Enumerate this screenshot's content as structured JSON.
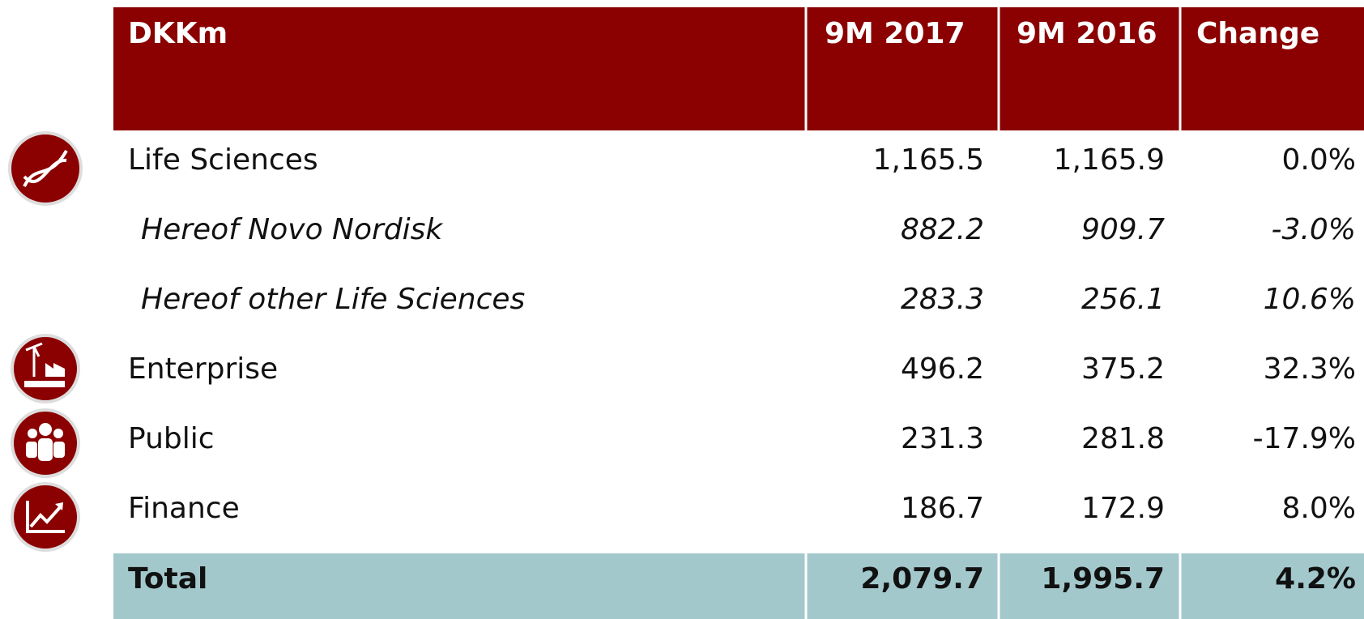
{
  "table": {
    "header": [
      "DKKm",
      "9M 2017",
      "9M 2016",
      "Change"
    ],
    "rows": [
      [
        "Life Sciences",
        "1,165.5",
        "1,165.9",
        "0.0%"
      ],
      [
        "Hereof Novo Nordisk",
        "882.2",
        "909.7",
        "-3.0%"
      ],
      [
        "Hereof other Life Sciences",
        "283.3",
        "256.1",
        "10.6%"
      ],
      [
        "Enterprise",
        "496.2",
        "375.2",
        "32.3%"
      ],
      [
        "Public",
        "231.3",
        "281.8",
        "-17.9%"
      ],
      [
        "Finance",
        "186.7",
        "172.9",
        "8.0%"
      ]
    ],
    "total": [
      "Total",
      "2,079.7",
      "1,995.7",
      "4.2%"
    ]
  }
}
